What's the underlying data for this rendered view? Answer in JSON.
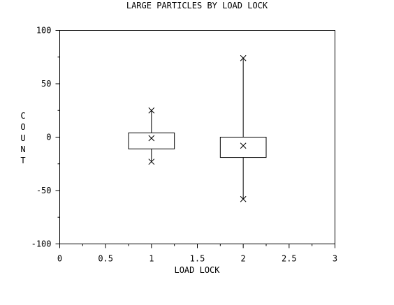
{
  "chart_data": {
    "type": "box",
    "title": "LARGE PARTICLES BY LOAD LOCK",
    "xlabel": "LOAD LOCK",
    "ylabel": "COUNT",
    "xlim": [
      0,
      3
    ],
    "ylim": [
      -100,
      100
    ],
    "x_ticks": [
      "0",
      "0.5",
      "1",
      "1.5",
      "2",
      "2.5",
      "3"
    ],
    "y_ticks": [
      "100",
      "50",
      "0",
      "-50",
      "-100"
    ],
    "x_tick_values": [
      0,
      0.5,
      1,
      1.5,
      2,
      2.5,
      3
    ],
    "y_tick_values": [
      100,
      50,
      0,
      -50,
      -100
    ],
    "grid": false,
    "boxes": [
      {
        "x": 1,
        "min": -23,
        "q1": -11,
        "median": -1,
        "q3": 4,
        "max": 25
      },
      {
        "x": 2,
        "min": -58,
        "q1": -19,
        "median": -8,
        "q3": 0,
        "max": 74
      }
    ]
  }
}
